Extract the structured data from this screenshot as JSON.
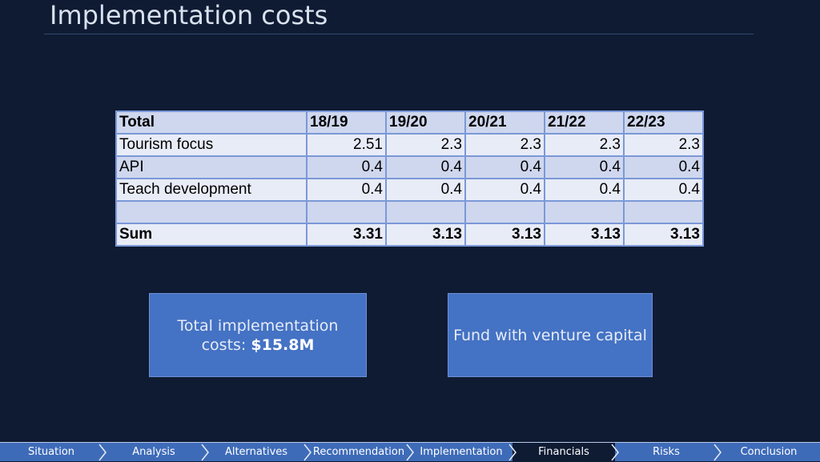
{
  "slide": {
    "title": "Implementation costs"
  },
  "table": {
    "header": [
      "Total",
      "18/19",
      "19/20",
      "20/21",
      "21/22",
      "22/23"
    ],
    "rows": [
      {
        "label": "Tourism focus",
        "values": [
          "2.51",
          "2.3",
          "2.3",
          "2.3",
          "2.3"
        ]
      },
      {
        "label": "API",
        "values": [
          "0.4",
          "0.4",
          "0.4",
          "0.4",
          "0.4"
        ]
      },
      {
        "label": "Teach development",
        "values": [
          "0.4",
          "0.4",
          "0.4",
          "0.4",
          "0.4"
        ]
      },
      {
        "label": "",
        "values": [
          "",
          "",
          "",
          "",
          ""
        ]
      }
    ],
    "sum": {
      "label": "Sum",
      "values": [
        "3.31",
        "3.13",
        "3.13",
        "3.13",
        "3.13"
      ]
    }
  },
  "boxes": {
    "total_prefix_line1": "Total implementation",
    "total_prefix_line2": "costs:",
    "total_value": "$15.8M",
    "fund": "Fund with venture capital"
  },
  "nav": {
    "items": [
      "Situation",
      "Analysis",
      "Alternatives",
      "Recommendation",
      "Implementation",
      "Financials",
      "Risks",
      "Conclusion"
    ],
    "active": "Financials"
  },
  "colors": {
    "background": "#0f1b33",
    "accent": "#4472c4",
    "table_border": "#7b98d8"
  }
}
